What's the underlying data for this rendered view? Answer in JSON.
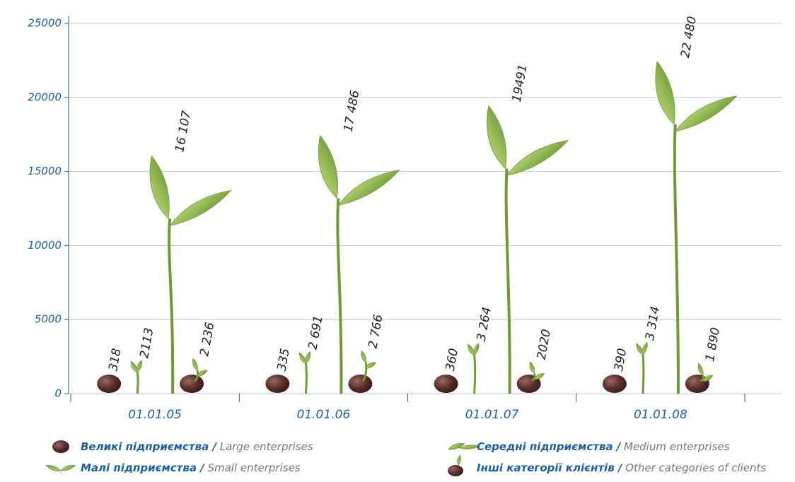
{
  "chart_data": {
    "type": "pictorial-bar",
    "categories": [
      "01.01.05",
      "01.01.06",
      "01.01.07",
      "01.01.08"
    ],
    "series": [
      {
        "name": "Великі підприємства / Large enterprises",
        "color": "#5a2e2a",
        "values": [
          318,
          335,
          360,
          390
        ]
      },
      {
        "name": "Малі підприємства / Small enterprises",
        "color": "#8db84a",
        "values": [
          2113,
          2691,
          3264,
          3314
        ],
        "value_labels": [
          "2113",
          "2 691",
          "3 264",
          "3 314"
        ]
      },
      {
        "name": "Середні підприємства / Medium enterprises",
        "color": "#8db84a",
        "values": [
          16107,
          17486,
          19491,
          22480
        ],
        "value_labels": [
          "16 107",
          "17 486",
          "19491",
          "22 480"
        ]
      },
      {
        "name": "Інші категорії клієнтів / Other categories of clients",
        "color": "#8db84a",
        "values": [
          2236,
          2766,
          2020,
          1890
        ],
        "value_labels": [
          "2 236",
          "2 766",
          "2020",
          "1 890"
        ]
      }
    ],
    "ylim": [
      0,
      25000
    ],
    "yticks": [
      0,
      5000,
      10000,
      15000,
      20000,
      25000
    ],
    "grid": true
  }
}
